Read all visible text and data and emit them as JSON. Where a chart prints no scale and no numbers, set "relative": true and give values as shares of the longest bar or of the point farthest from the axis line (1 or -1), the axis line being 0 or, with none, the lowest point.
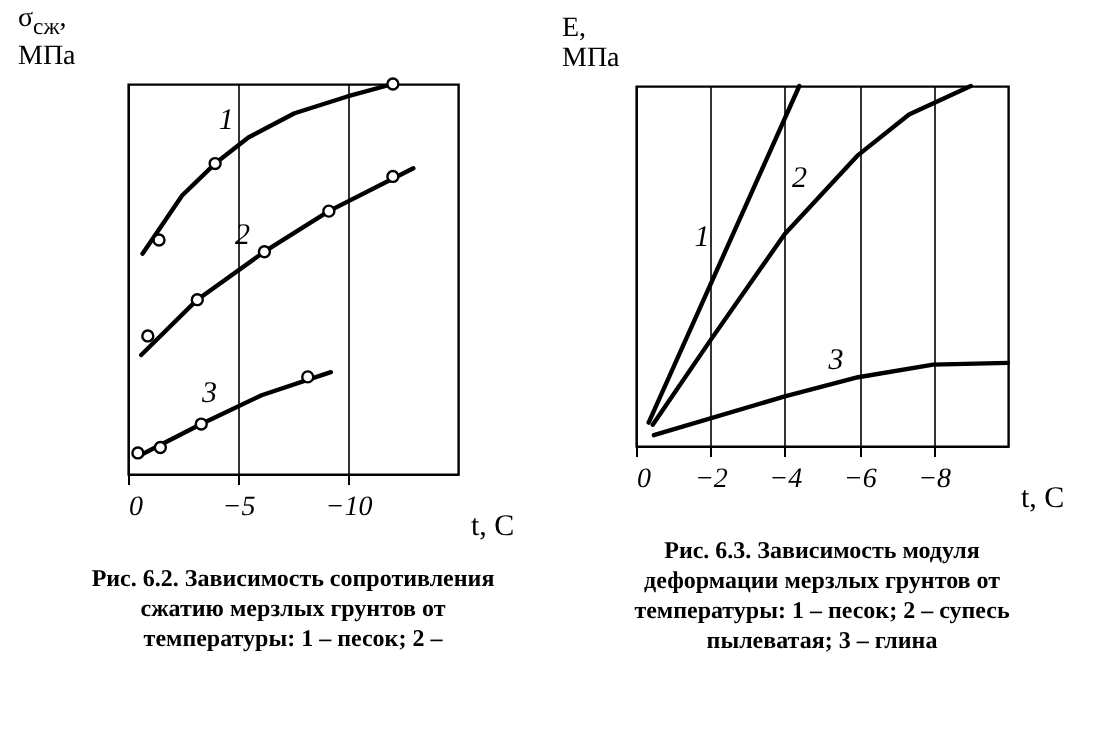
{
  "chart_data": [
    {
      "type": "line",
      "title": "Рис. 6.2. Зависимость сопротивления сжатию мерзлых грунтов от температуры: 1 – песок; 2 –",
      "xlabel": "t, C",
      "ylabel": "σ$_{сж}$, МПа",
      "relative": true,
      "xlim": [
        0,
        -15
      ],
      "xticks": [
        0,
        -5,
        -10
      ],
      "grid": "x",
      "line_style": "solid",
      "series": [
        {
          "name": "1",
          "color": "#000000",
          "x": [
            -0.66,
            -2.46,
            -3.96,
            -5.47,
            -7.57,
            -9.97,
            -12.04
          ],
          "values": [
            0.565,
            0.714,
            0.796,
            0.863,
            0.925,
            0.968,
            1
          ]
        },
        {
          "type": "scatter",
          "marker": "circle",
          "color": "#000000",
          "x": [
            -1.41,
            -3.96,
            -12.04
          ],
          "values": [
            0.6,
            0.796,
            1
          ]
        },
        {
          "name": "2",
          "color": "#000000",
          "x": [
            -0.6,
            -3.15,
            -6.2,
            -9.13,
            -12.97
          ],
          "values": [
            0.305,
            0.447,
            0.57,
            0.674,
            0.784
          ]
        },
        {
          "type": "scatter",
          "marker": "circle",
          "color": "#000000",
          "x": [
            -0.9,
            -3.15,
            -6.2,
            -9.13,
            -12.04
          ],
          "values": [
            0.354,
            0.447,
            0.57,
            0.674,
            0.763
          ]
        },
        {
          "name": "3",
          "color": "#000000",
          "x": [
            -0.51,
            -3.33,
            -6.07,
            -9.22
          ],
          "values": [
            0.047,
            0.128,
            0.202,
            0.261
          ]
        },
        {
          "type": "scatter",
          "marker": "circle",
          "color": "#000000",
          "x": [
            -0.45,
            -1.47,
            -3.33,
            -8.17
          ],
          "values": [
            0.054,
            0.068,
            0.128,
            0.249
          ]
        }
      ]
    },
    {
      "type": "line",
      "title": "Рис. 6.3. Зависимость модуля деформации мерзлых грунтов от температуры: 1 – песок; 2 – супесь пылеватая; 3 – глина",
      "xlabel": "t, C",
      "ylabel": "E, МПа",
      "relative": true,
      "xlim": [
        0,
        -10
      ],
      "xticks": [
        0,
        -2,
        -4,
        -6,
        -8
      ],
      "grid": "x",
      "line_style": "solid",
      "series": [
        {
          "name": "1",
          "color": "#000000",
          "x": [
            -0.34,
            -4.39
          ],
          "values": [
            0.065,
            1
          ]
        },
        {
          "name": "2",
          "color": "#000000",
          "x": [
            -0.45,
            -1.99,
            -4.0,
            -5.97,
            -7.34,
            -9.0
          ],
          "values": [
            0.059,
            0.292,
            0.589,
            0.808,
            0.921,
            1
          ]
        },
        {
          "name": "3",
          "color": "#000000",
          "x": [
            -0.48,
            -4.0,
            -5.97,
            -7.99,
            -10
          ],
          "values": [
            0.03,
            0.138,
            0.191,
            0.226,
            0.231
          ]
        }
      ]
    }
  ]
}
